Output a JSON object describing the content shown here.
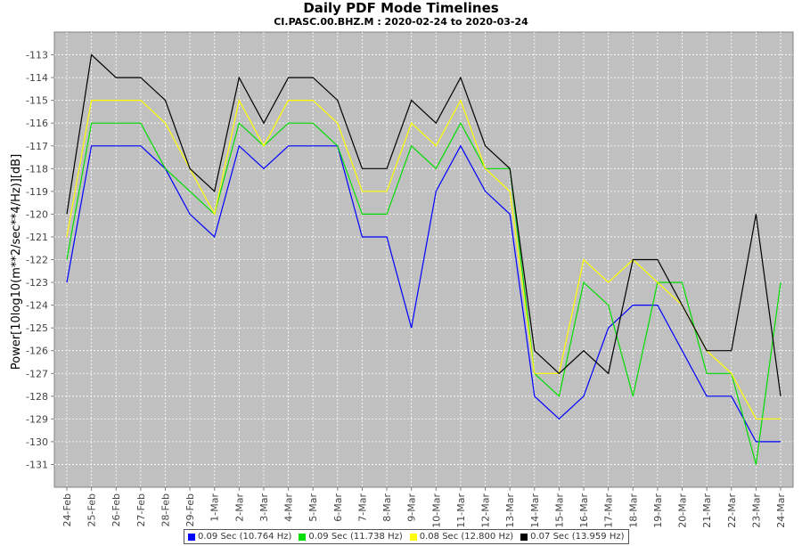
{
  "chart_data": {
    "type": "line",
    "title": "Daily PDF Mode Timelines",
    "subtitle": "CI.PASC.00.BHZ.M : 2020-02-24 to 2020-03-24",
    "xlabel": "",
    "ylabel": "Power[10log10(m**2/sec**4/Hz)][dB]",
    "ylim": [
      -132,
      -112
    ],
    "yticks": [
      -113,
      -114,
      -115,
      -116,
      -117,
      -118,
      -119,
      -120,
      -121,
      -122,
      -123,
      -124,
      -125,
      -126,
      -127,
      -128,
      -129,
      -130,
      -131
    ],
    "grid": true,
    "legend_position": "bottom",
    "categories": [
      "24-Feb",
      "25-Feb",
      "26-Feb",
      "27-Feb",
      "28-Feb",
      "29-Feb",
      "1-Mar",
      "2-Mar",
      "3-Mar",
      "4-Mar",
      "5-Mar",
      "6-Mar",
      "7-Mar",
      "8-Mar",
      "9-Mar",
      "10-Mar",
      "11-Mar",
      "12-Mar",
      "13-Mar",
      "14-Mar",
      "15-Mar",
      "16-Mar",
      "17-Mar",
      "18-Mar",
      "19-Mar",
      "20-Mar",
      "21-Mar",
      "22-Mar",
      "23-Mar",
      "24-Mar"
    ],
    "series": [
      {
        "name": "0.09 Sec (10.764 Hz)",
        "color": "#0000ff",
        "values": [
          -123,
          -117,
          -117,
          -117,
          -118,
          -120,
          -121,
          -117,
          -118,
          -117,
          -117,
          -117,
          -121,
          -121,
          -125,
          -119,
          -117,
          -119,
          -120,
          -128,
          -129,
          -128,
          -125,
          -124,
          -124,
          -126,
          -128,
          -128,
          -130,
          -130
        ]
      },
      {
        "name": "0.09 Sec (11.738 Hz)",
        "color": "#00dd00",
        "values": [
          -122,
          -116,
          -116,
          -116,
          -118,
          -119,
          -120,
          -116,
          -117,
          -116,
          -116,
          -117,
          -120,
          -120,
          -117,
          -118,
          -116,
          -118,
          -118,
          -127,
          -128,
          -123,
          -124,
          -128,
          -123,
          -123,
          -127,
          -127,
          -131,
          -123
        ]
      },
      {
        "name": "0.08 Sec (12.800 Hz)",
        "color": "#ffff00",
        "values": [
          -121,
          -115,
          -115,
          -115,
          -116,
          -118,
          -120,
          -115,
          -117,
          -115,
          -115,
          -116,
          -119,
          -119,
          -116,
          -117,
          -115,
          -118,
          -119,
          -127,
          -127,
          -122,
          -123,
          -122,
          -123,
          -124,
          -126,
          -127,
          -129,
          -129
        ]
      },
      {
        "name": "0.07 Sec (13.959 Hz)",
        "color": "#000000",
        "values": [
          -120,
          -113,
          -114,
          -114,
          -115,
          -118,
          -119,
          -114,
          -116,
          -114,
          -114,
          -115,
          -118,
          -118,
          -115,
          -116,
          -114,
          -117,
          -118,
          -126,
          -127,
          -126,
          -127,
          -122,
          -122,
          -124,
          -126,
          -126,
          -120,
          -128
        ]
      }
    ]
  }
}
